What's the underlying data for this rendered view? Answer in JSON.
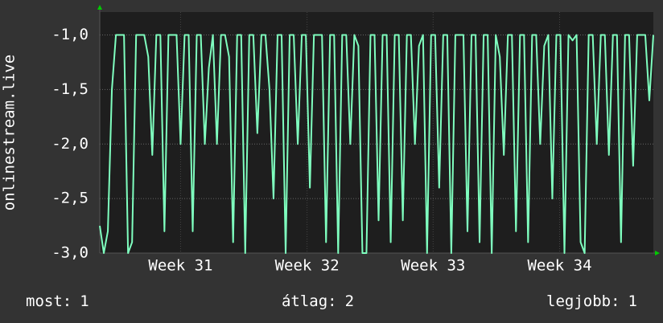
{
  "chart_data": {
    "type": "line",
    "y_label": "onlinestream.live",
    "series": [
      {
        "name": null,
        "color": "#7fffbf",
        "values": [
          -2.75,
          -3,
          -2.8,
          -1.5,
          -1,
          -1,
          -1,
          -3,
          -2.9,
          -1,
          -1,
          -1,
          -1.2,
          -2.1,
          -1,
          -1,
          -2.8,
          -1,
          -1,
          -1,
          -2.0,
          -1,
          -1,
          -2.8,
          -1,
          -1,
          -2.0,
          -1.3,
          -1,
          -2.0,
          -1,
          -1,
          -1.2,
          -2.9,
          -1,
          -1,
          -3,
          -1,
          -1,
          -1.9,
          -1,
          -1,
          -1.5,
          -2.5,
          -1,
          -1,
          -3,
          -1,
          -1,
          -2.0,
          -1,
          -1,
          -2.4,
          -1,
          -1,
          -1,
          -2.9,
          -1,
          -1,
          -3,
          -1,
          -1,
          -2.0,
          -1,
          -1.1,
          -3,
          -3,
          -1,
          -1,
          -2.7,
          -1,
          -1,
          -2.9,
          -1,
          -1,
          -2.7,
          -1,
          -1,
          -2.0,
          -1.1,
          -1,
          -3,
          -1,
          -1,
          -2.4,
          -1,
          -1,
          -3,
          -1,
          -1,
          -1,
          -2.8,
          -1,
          -1,
          -2.9,
          -1,
          -1,
          -3,
          -1,
          -1.2,
          -2.1,
          -1,
          -1,
          -2.8,
          -1,
          -1,
          -2.9,
          -1,
          -1,
          -2.0,
          -1.1,
          -1,
          -2.5,
          -1,
          -1,
          -3,
          -1,
          -1.05,
          -1,
          -2.9,
          -3,
          -1,
          -1,
          -2.0,
          -1,
          -1,
          -2.1,
          -1,
          -1,
          -2.9,
          -1,
          -1,
          -2.2,
          -1,
          -1,
          -1,
          -1.6,
          -1
        ]
      }
    ],
    "xlim": [
      0,
      137
    ],
    "xticks": [
      {
        "value": 20,
        "label": "Week 31"
      },
      {
        "value": 51.3,
        "label": "Week 32"
      },
      {
        "value": 82.5,
        "label": "Week 33"
      },
      {
        "value": 113.8,
        "label": "Week 34"
      }
    ],
    "ylim": [
      -3,
      -0.79
    ],
    "yticks": [
      {
        "value": -3,
        "label": "-3,0"
      },
      {
        "value": -2.5,
        "label": "-2,5"
      },
      {
        "value": -2,
        "label": "-2,0"
      },
      {
        "value": -1.5,
        "label": "-1,5"
      },
      {
        "value": -1,
        "label": "-1,0"
      }
    ],
    "grid": true,
    "legend": [
      {
        "label": "most:",
        "value": 1
      },
      {
        "label": "átlag:",
        "value": 2
      },
      {
        "label": "legjobb:",
        "value": 1
      }
    ]
  }
}
